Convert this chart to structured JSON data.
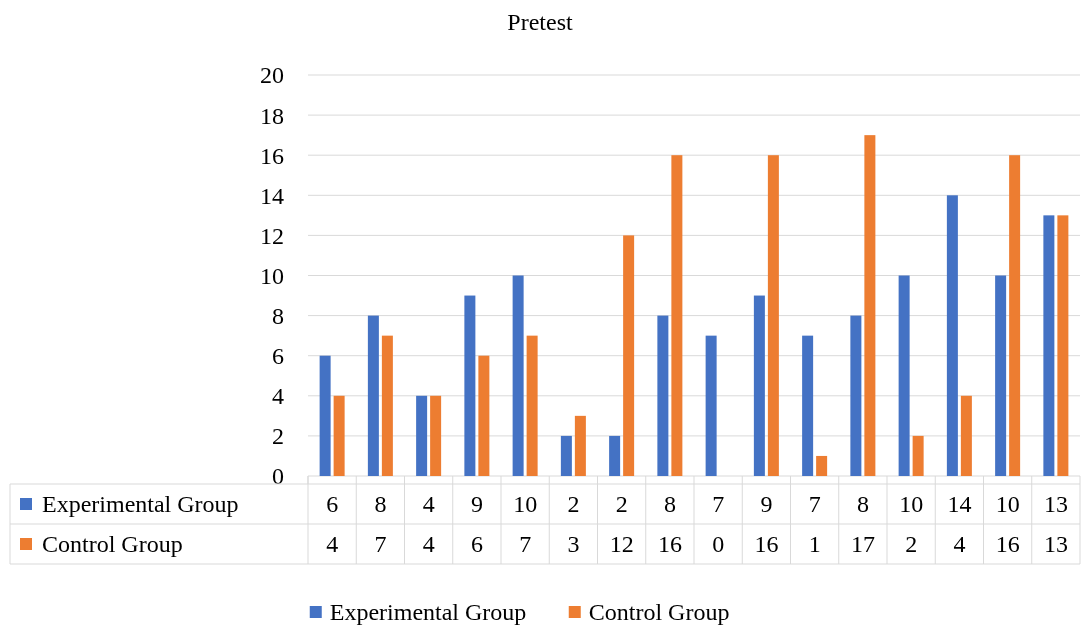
{
  "chart_data": {
    "type": "bar",
    "title": "Pretest",
    "categories": [
      null,
      null,
      null,
      null,
      null,
      null,
      null,
      null,
      null,
      null,
      null,
      null,
      null,
      null,
      null,
      null
    ],
    "series": [
      {
        "name": "Experimental Group",
        "color": "#4472c4",
        "values": [
          6,
          8,
          4,
          9,
          10,
          2,
          2,
          8,
          7,
          9,
          7,
          8,
          10,
          14,
          10,
          13
        ]
      },
      {
        "name": "Control Group",
        "color": "#ed7d31",
        "values": [
          4,
          7,
          4,
          6,
          7,
          3,
          12,
          16,
          0,
          16,
          1,
          17,
          2,
          4,
          16,
          13
        ]
      }
    ],
    "ylim": [
      0,
      20
    ],
    "yticks": [
      0,
      2,
      4,
      6,
      8,
      10,
      12,
      14,
      16,
      18,
      20
    ],
    "grid": "y",
    "legend": "bottom",
    "data_labels": true
  }
}
